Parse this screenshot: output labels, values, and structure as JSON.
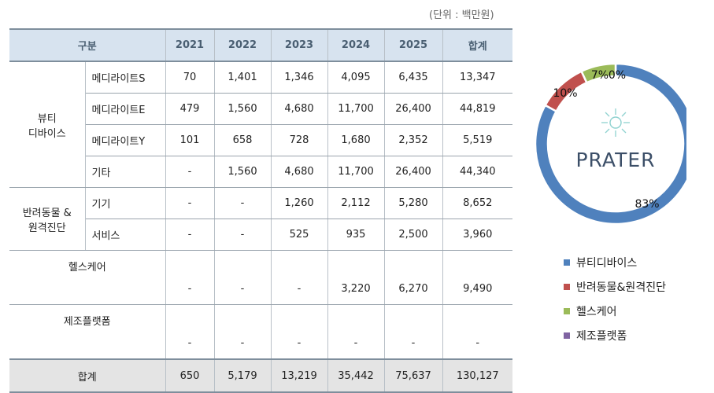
{
  "unit_note": "(단위 : 백만원)",
  "table": {
    "headers": [
      "구분",
      "2021",
      "2022",
      "2023",
      "2024",
      "2025",
      "합계"
    ],
    "groups": [
      {
        "name": "뷰티\n디바이스",
        "rows": [
          {
            "label": "메디라이트S",
            "values": [
              "70",
              "1,401",
              "1,346",
              "4,095",
              "6,435",
              "13,347"
            ]
          },
          {
            "label": "메디라이트E",
            "values": [
              "479",
              "1,560",
              "4,680",
              "11,700",
              "26,400",
              "44,819"
            ]
          },
          {
            "label": "메디라이트Y",
            "values": [
              "101",
              "658",
              "728",
              "1,680",
              "2,352",
              "5,519"
            ]
          },
          {
            "label": "기타",
            "values": [
              "-",
              "1,560",
              "4,680",
              "11,700",
              "26,400",
              "44,340"
            ]
          }
        ]
      },
      {
        "name": "반려동물 &\n원격진단",
        "rows": [
          {
            "label": "기기",
            "values": [
              "-",
              "-",
              "1,260",
              "2,112",
              "5,280",
              "8,652"
            ]
          },
          {
            "label": "서비스",
            "values": [
              "-",
              "-",
              "525",
              "935",
              "2,500",
              "3,960"
            ]
          }
        ]
      }
    ],
    "single_rows": [
      {
        "label": "헬스케어",
        "values": [
          "-",
          "-",
          "-",
          "3,220",
          "6,270",
          "9,490"
        ]
      },
      {
        "label": "제조플랫폼",
        "values": [
          "-",
          "-",
          "-",
          "-",
          "-",
          "-"
        ]
      }
    ],
    "total": {
      "label": "합계",
      "values": [
        "650",
        "5,179",
        "13,219",
        "35,442",
        "75,637",
        "130,127"
      ]
    }
  },
  "chart_data": {
    "type": "pie",
    "donut": true,
    "center_logo_text": "PRATER",
    "slices": [
      {
        "name": "뷰티디바이스",
        "value": 83,
        "label": "83%",
        "color": "#4f81bd"
      },
      {
        "name": "반려동물&원격진단",
        "value": 10,
        "label": "10%",
        "color": "#c0504d"
      },
      {
        "name": "헬스케어",
        "value": 7,
        "label": "7%",
        "color": "#9bbb59"
      },
      {
        "name": "제조플랫폼",
        "value": 0,
        "label": "0%",
        "color": "#8064a2"
      }
    ],
    "legend_placement": "bottom-right"
  }
}
